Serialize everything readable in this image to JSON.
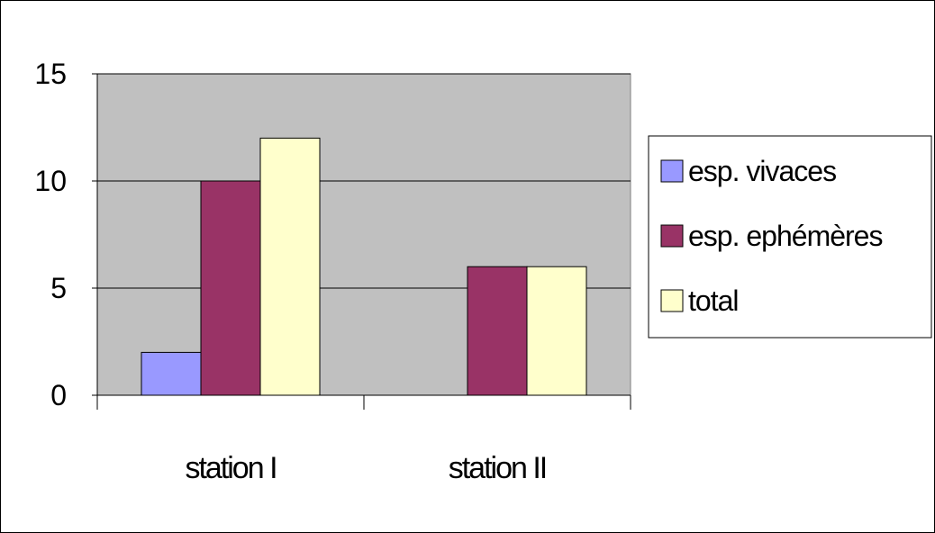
{
  "chart_data": {
    "type": "bar",
    "title": "",
    "xlabel": "",
    "ylabel": "",
    "categories": [
      "station I",
      "station II"
    ],
    "series": [
      {
        "name": "esp. vivaces",
        "values": [
          2,
          0
        ],
        "color": "#9999FF"
      },
      {
        "name": "esp. ephémères",
        "values": [
          10,
          6
        ],
        "color": "#993366"
      },
      {
        "name": "total",
        "values": [
          12,
          6
        ],
        "color": "#FFFFCC"
      }
    ],
    "ylim": [
      0,
      15
    ],
    "yticks": [
      "0",
      "5",
      "10",
      "15"
    ],
    "grid": true,
    "plot_background": "#C0C0C0",
    "legend_position": "right"
  }
}
